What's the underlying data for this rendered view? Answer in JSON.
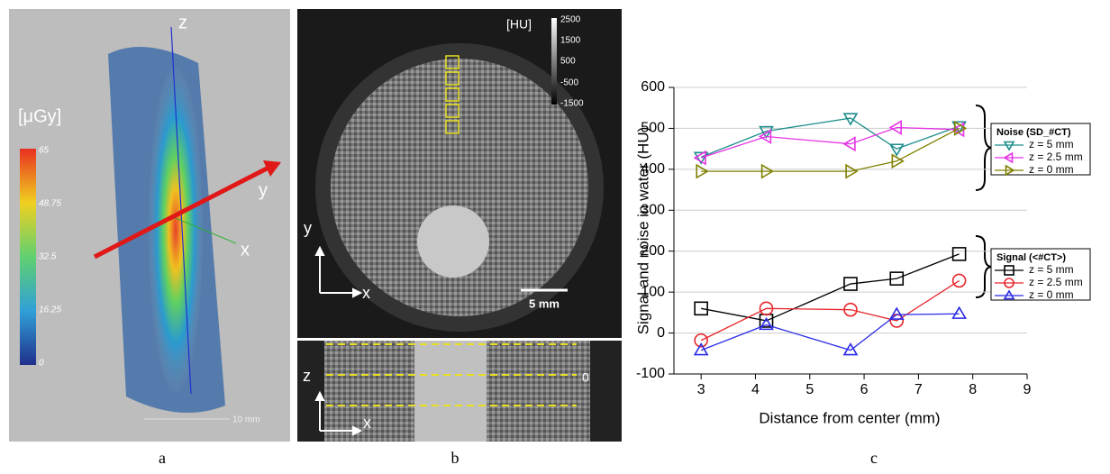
{
  "chart_data": {
    "type": "line",
    "x_label": "Distance from center (mm)",
    "y_label": "Signal and noise in water (HU)",
    "xlim": [
      2.5,
      9
    ],
    "xticks": [
      3,
      4,
      5,
      6,
      7,
      8,
      9
    ],
    "ylim": [
      -100,
      600
    ],
    "yticks": [
      -100,
      0,
      100,
      200,
      300,
      400,
      500,
      600
    ],
    "grid": true,
    "legend_titles": [
      "Noise (SD_#CT)",
      "Signal (<#CT>)"
    ],
    "x": [
      3,
      4.2,
      5.75,
      6.6,
      7.75
    ],
    "series": [
      {
        "name": "z = 5 mm",
        "color": "#1e8c8c",
        "marker": "triangle-down",
        "values": [
          430,
          493,
          525,
          450,
          505
        ]
      },
      {
        "name": "z = 2.5 mm",
        "color": "#e633e6",
        "marker": "triangle-left",
        "values": [
          428,
          480,
          462,
          502,
          497
        ]
      },
      {
        "name": "z = 0 mm",
        "color": "#808000",
        "marker": "triangle-right",
        "values": [
          395,
          395,
          395,
          420,
          500
        ]
      },
      {
        "name": "z = 5 mm",
        "color": "#000000",
        "marker": "square",
        "values": [
          60,
          30,
          120,
          133,
          193
        ]
      },
      {
        "name": "z = 2.5 mm",
        "color": "#e8262b",
        "marker": "circle",
        "values": [
          -18,
          60,
          57,
          30,
          128
        ]
      },
      {
        "name": "z = 0 mm",
        "color": "#2a2ae8",
        "marker": "triangle-up",
        "values": [
          -42,
          20,
          -42,
          45,
          47
        ]
      }
    ],
    "panel_label": "c"
  },
  "panel_a": {
    "label": "a",
    "axis_z": "z",
    "axis_y": "y",
    "axis_x": "x",
    "colorbar_title": "[μGy]",
    "colorbar_ticks": [
      65,
      48.75,
      32.5,
      16.25,
      0
    ],
    "scale_bar": "10 mm"
  },
  "panel_b": {
    "label": "b",
    "colorbar_title": "[HU]",
    "colorbar_ticks": [
      2500,
      1500,
      500,
      -500,
      -1500
    ],
    "axis_y": "y",
    "axis_x": "x",
    "scale_bar": "5 mm",
    "axis_z": "z",
    "axis_x2": "x",
    "zero": "0"
  }
}
